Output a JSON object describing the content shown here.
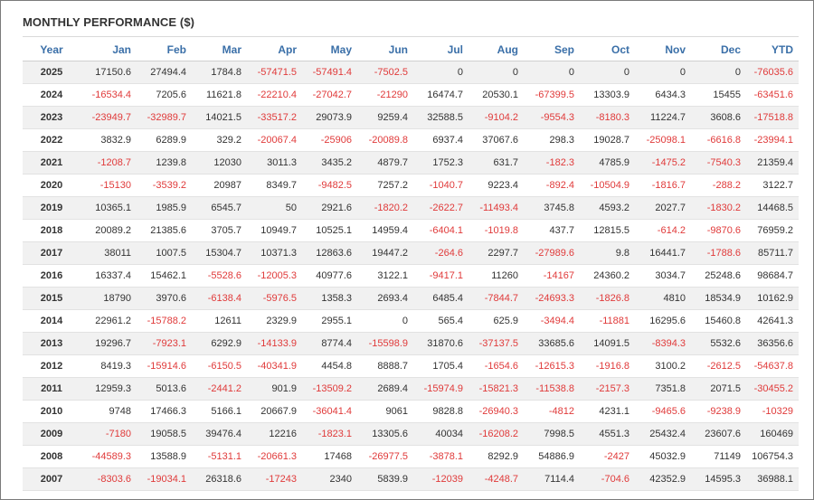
{
  "title": "MONTHLY PERFORMANCE ($)",
  "colors": {
    "header": "#3a6fa8",
    "negative": "#e03a3a",
    "text": "#333333",
    "stripe": "#f1f1f1"
  },
  "columns": [
    "Year",
    "Jan",
    "Feb",
    "Mar",
    "Apr",
    "May",
    "Jun",
    "Jul",
    "Aug",
    "Sep",
    "Oct",
    "Nov",
    "Dec",
    "YTD"
  ],
  "rows": [
    [
      "2025",
      "17150.6",
      "27494.4",
      "1784.8",
      "-57471.5",
      "-57491.4",
      "-7502.5",
      "0",
      "0",
      "0",
      "0",
      "0",
      "0",
      "-76035.6"
    ],
    [
      "2024",
      "-16534.4",
      "7205.6",
      "11621.8",
      "-22210.4",
      "-27042.7",
      "-21290",
      "16474.7",
      "20530.1",
      "-67399.5",
      "13303.9",
      "6434.3",
      "15455",
      "-63451.6"
    ],
    [
      "2023",
      "-23949.7",
      "-32989.7",
      "14021.5",
      "-33517.2",
      "29073.9",
      "9259.4",
      "32588.5",
      "-9104.2",
      "-9554.3",
      "-8180.3",
      "11224.7",
      "3608.6",
      "-17518.8"
    ],
    [
      "2022",
      "3832.9",
      "6289.9",
      "329.2",
      "-20067.4",
      "-25906",
      "-20089.8",
      "6937.4",
      "37067.6",
      "298.3",
      "19028.7",
      "-25098.1",
      "-6616.8",
      "-23994.1"
    ],
    [
      "2021",
      "-1208.7",
      "1239.8",
      "12030",
      "3011.3",
      "3435.2",
      "4879.7",
      "1752.3",
      "631.7",
      "-182.3",
      "4785.9",
      "-1475.2",
      "-7540.3",
      "21359.4"
    ],
    [
      "2020",
      "-15130",
      "-3539.2",
      "20987",
      "8349.7",
      "-9482.5",
      "7257.2",
      "-1040.7",
      "9223.4",
      "-892.4",
      "-10504.9",
      "-1816.7",
      "-288.2",
      "3122.7"
    ],
    [
      "2019",
      "10365.1",
      "1985.9",
      "6545.7",
      "50",
      "2921.6",
      "-1820.2",
      "-2622.7",
      "-11493.4",
      "3745.8",
      "4593.2",
      "2027.7",
      "-1830.2",
      "14468.5"
    ],
    [
      "2018",
      "20089.2",
      "21385.6",
      "3705.7",
      "10949.7",
      "10525.1",
      "14959.4",
      "-6404.1",
      "-1019.8",
      "437.7",
      "12815.5",
      "-614.2",
      "-9870.6",
      "76959.2"
    ],
    [
      "2017",
      "38011",
      "1007.5",
      "15304.7",
      "10371.3",
      "12863.6",
      "19447.2",
      "-264.6",
      "2297.7",
      "-27989.6",
      "9.8",
      "16441.7",
      "-1788.6",
      "85711.7"
    ],
    [
      "2016",
      "16337.4",
      "15462.1",
      "-5528.6",
      "-12005.3",
      "40977.6",
      "3122.1",
      "-9417.1",
      "11260",
      "-14167",
      "24360.2",
      "3034.7",
      "25248.6",
      "98684.7"
    ],
    [
      "2015",
      "18790",
      "3970.6",
      "-6138.4",
      "-5976.5",
      "1358.3",
      "2693.4",
      "6485.4",
      "-7844.7",
      "-24693.3",
      "-1826.8",
      "4810",
      "18534.9",
      "10162.9"
    ],
    [
      "2014",
      "22961.2",
      "-15788.2",
      "12611",
      "2329.9",
      "2955.1",
      "0",
      "565.4",
      "625.9",
      "-3494.4",
      "-11881",
      "16295.6",
      "15460.8",
      "42641.3"
    ],
    [
      "2013",
      "19296.7",
      "-7923.1",
      "6292.9",
      "-14133.9",
      "8774.4",
      "-15598.9",
      "31870.6",
      "-37137.5",
      "33685.6",
      "14091.5",
      "-8394.3",
      "5532.6",
      "36356.6"
    ],
    [
      "2012",
      "8419.3",
      "-15914.6",
      "-6150.5",
      "-40341.9",
      "4454.8",
      "8888.7",
      "1705.4",
      "-1654.6",
      "-12615.3",
      "-1916.8",
      "3100.2",
      "-2612.5",
      "-54637.8"
    ],
    [
      "2011",
      "12959.3",
      "5013.6",
      "-2441.2",
      "901.9",
      "-13509.2",
      "2689.4",
      "-15974.9",
      "-15821.3",
      "-11538.8",
      "-2157.3",
      "7351.8",
      "2071.5",
      "-30455.2"
    ],
    [
      "2010",
      "9748",
      "17466.3",
      "5166.1",
      "20667.9",
      "-36041.4",
      "9061",
      "9828.8",
      "-26940.3",
      "-4812",
      "4231.1",
      "-9465.6",
      "-9238.9",
      "-10329"
    ],
    [
      "2009",
      "-7180",
      "19058.5",
      "39476.4",
      "12216",
      "-1823.1",
      "13305.6",
      "40034",
      "-16208.2",
      "7998.5",
      "4551.3",
      "25432.4",
      "23607.6",
      "160469"
    ],
    [
      "2008",
      "-44589.3",
      "13588.9",
      "-5131.1",
      "-20661.3",
      "17468",
      "-26977.5",
      "-3878.1",
      "8292.9",
      "54886.9",
      "-2427",
      "45032.9",
      "71149",
      "106754.3"
    ],
    [
      "2007",
      "-8303.6",
      "-19034.1",
      "26318.6",
      "-17243",
      "2340",
      "5839.9",
      "-12039",
      "-4248.7",
      "7114.4",
      "-704.6",
      "42352.9",
      "14595.3",
      "36988.1"
    ]
  ]
}
